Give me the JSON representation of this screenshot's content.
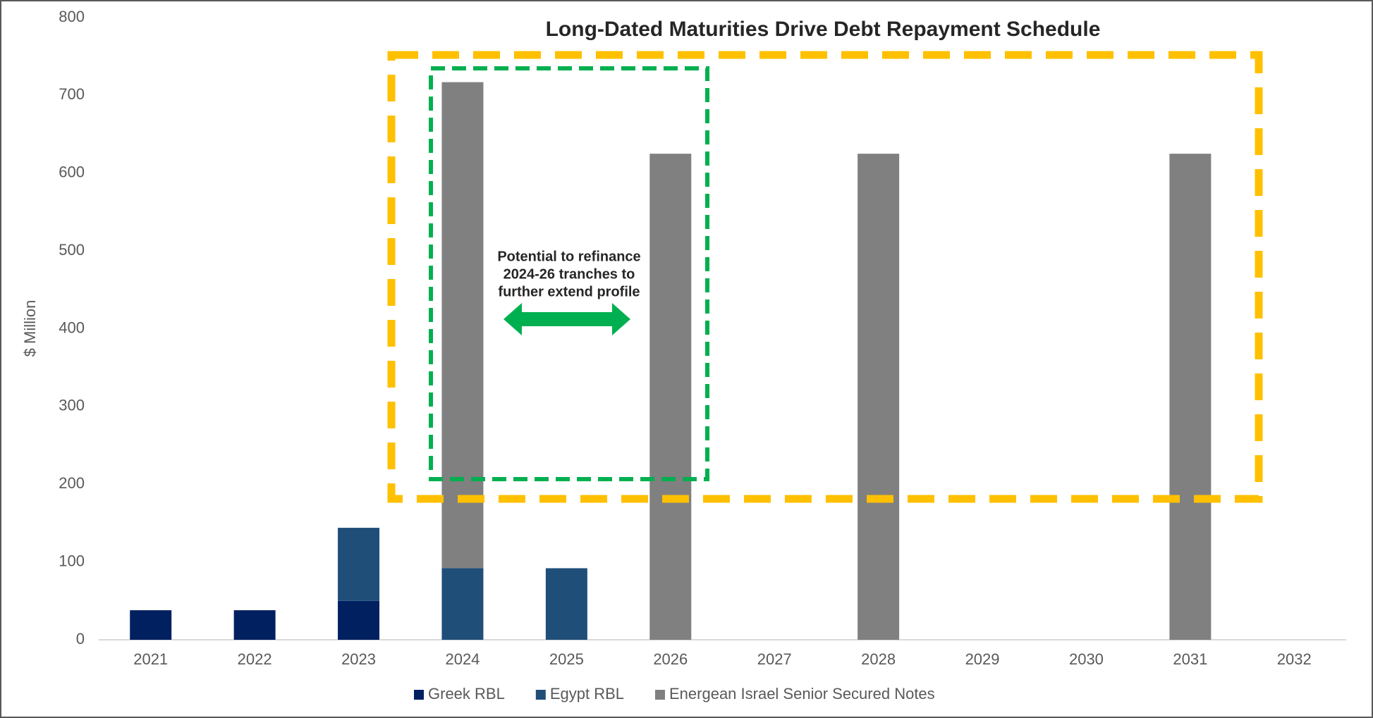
{
  "chart_data": {
    "type": "bar",
    "stacked": true,
    "title": "Long-Dated Maturities Drive Debt Repayment Schedule",
    "y_label": "$ Million",
    "categories": [
      "2021",
      "2022",
      "2023",
      "2024",
      "2025",
      "2026",
      "2027",
      "2028",
      "2029",
      "2030",
      "2031",
      "2032"
    ],
    "series": [
      {
        "name": "Greek RBL",
        "color": "#002060",
        "values": [
          38,
          38,
          50,
          null,
          null,
          null,
          null,
          null,
          null,
          null,
          null,
          null
        ]
      },
      {
        "name": "Egypt RBL",
        "color": "#1f4e79",
        "values": [
          null,
          null,
          94,
          92,
          92,
          null,
          null,
          null,
          null,
          null,
          null,
          null
        ]
      },
      {
        "name": "Energean Israel Senior Secured Notes",
        "color": "#808080",
        "values": [
          null,
          null,
          null,
          625,
          null,
          625,
          null,
          625,
          null,
          null,
          625,
          null
        ]
      }
    ],
    "ylim": [
      0,
      800
    ],
    "yticks": [
      0,
      100,
      200,
      300,
      400,
      500,
      600,
      700,
      800
    ],
    "annotation": [
      "Potential to refinance",
      "2024-26 tranches to",
      "further extend profile"
    ],
    "legend": "bottom"
  }
}
